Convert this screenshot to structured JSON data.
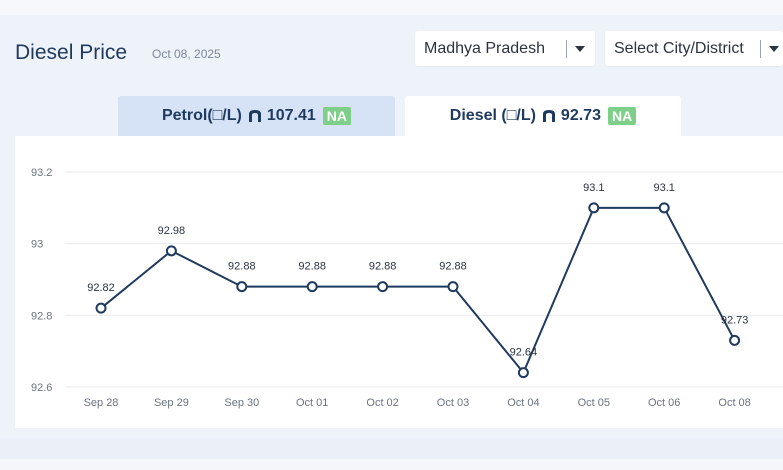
{
  "header": {
    "title": "Diesel Price",
    "date": "Oct 08, 2025"
  },
  "filters": {
    "state": "Madhya Pradesh",
    "city": "Select City/District"
  },
  "tabs": [
    {
      "label": "Petrol(□/L)",
      "price": "107.41",
      "badge": "NA",
      "active": false
    },
    {
      "label": "Diesel (□/L)",
      "price": "92.73",
      "badge": "NA",
      "active": true
    }
  ],
  "icons": {
    "currency": "rupee-icon",
    "dropdown": "chevron-down-icon"
  },
  "colors": {
    "line": "#1f3a5f",
    "badge": "#7dcf8a",
    "active_tab": "#ffffff",
    "inactive_tab": "#d6e2f6"
  },
  "chart_data": {
    "type": "line",
    "categories": [
      "Sep 28",
      "Sep 29",
      "Sep 30",
      "Oct 01",
      "Oct 02",
      "Oct 03",
      "Oct 04",
      "Oct 05",
      "Oct 06",
      "Oct 08"
    ],
    "values": [
      92.82,
      92.98,
      92.88,
      92.88,
      92.88,
      92.88,
      92.64,
      93.1,
      93.1,
      92.73
    ],
    "data_labels": [
      "92.82",
      "92.98",
      "92.88",
      "92.88",
      "92.88",
      "92.88",
      "92.64",
      "93.1",
      "93.1",
      "92.73"
    ],
    "y_ticks": [
      "92.6",
      "92.8",
      "93",
      "93.2"
    ],
    "ylim": [
      92.6,
      93.2
    ],
    "grid": true,
    "legend": "none"
  }
}
